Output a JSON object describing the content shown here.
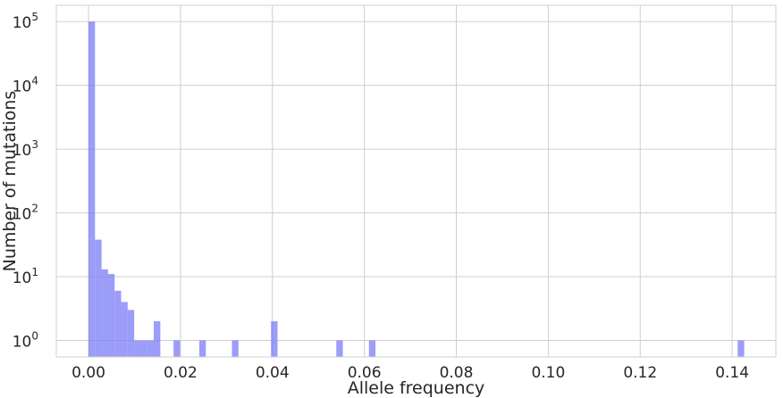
{
  "chart_data": {
    "type": "bar",
    "subtype": "histogram",
    "title": "",
    "xlabel": "Allele frequency",
    "ylabel": "Number of mutations",
    "xlim": [
      -0.007,
      0.1495
    ],
    "yscale": "log",
    "ylim": [
      0.55,
      180000
    ],
    "grid": true,
    "bar_color": "#7b7bf7",
    "bin_width": 0.00142,
    "x_ticks": [
      {
        "value": 0.0,
        "label": "0.00"
      },
      {
        "value": 0.02,
        "label": "0.02"
      },
      {
        "value": 0.04,
        "label": "0.04"
      },
      {
        "value": 0.06,
        "label": "0.06"
      },
      {
        "value": 0.08,
        "label": "0.08"
      },
      {
        "value": 0.1,
        "label": "0.10"
      },
      {
        "value": 0.12,
        "label": "0.12"
      },
      {
        "value": 0.14,
        "label": "0.14"
      }
    ],
    "y_ticks": [
      {
        "value": 1,
        "base": "10",
        "exp": "0"
      },
      {
        "value": 10,
        "base": "10",
        "exp": "1"
      },
      {
        "value": 100,
        "base": "10",
        "exp": "2"
      },
      {
        "value": 1000,
        "base": "10",
        "exp": "3"
      },
      {
        "value": 10000,
        "base": "10",
        "exp": "4"
      },
      {
        "value": 100000,
        "base": "10",
        "exp": "5"
      }
    ],
    "bins": [
      {
        "x0": 0.0,
        "count": 100000
      },
      {
        "x0": 0.00142,
        "count": 38
      },
      {
        "x0": 0.00284,
        "count": 13
      },
      {
        "x0": 0.00426,
        "count": 11
      },
      {
        "x0": 0.00568,
        "count": 6
      },
      {
        "x0": 0.0071,
        "count": 4
      },
      {
        "x0": 0.00852,
        "count": 3
      },
      {
        "x0": 0.00994,
        "count": 1
      },
      {
        "x0": 0.01136,
        "count": 1
      },
      {
        "x0": 0.01278,
        "count": 1
      },
      {
        "x0": 0.0142,
        "count": 2
      },
      {
        "x0": 0.0185,
        "count": 1
      },
      {
        "x0": 0.0241,
        "count": 1
      },
      {
        "x0": 0.0312,
        "count": 1
      },
      {
        "x0": 0.0397,
        "count": 2
      },
      {
        "x0": 0.0539,
        "count": 1
      },
      {
        "x0": 0.061,
        "count": 1
      },
      {
        "x0": 0.1412,
        "count": 1
      }
    ]
  }
}
